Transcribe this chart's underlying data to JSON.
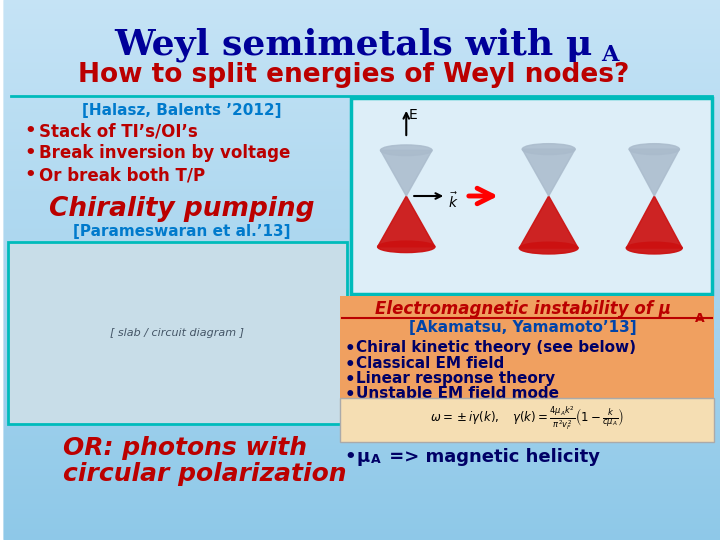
{
  "bg_top": "#c5e3f5",
  "bg_bottom": "#8ec8e8",
  "title_color": "#000099",
  "subtitle": "How to split energies of Weyl nodes?",
  "subtitle_color": "#bb0000",
  "teal_line_color": "#00bbbb",
  "ref1_text": "[Halasz, Balents ’2012]",
  "ref1_color": "#007acc",
  "bullets": [
    "Stack of TI’s/OI’s",
    "Break inversion by voltage",
    "Or break both T/P"
  ],
  "bullets_color": "#bb0000",
  "chirality_text": "Chirality pumping",
  "chirality_color": "#bb0000",
  "ref2_text": "[Parameswaran et al.’13]",
  "ref2_color": "#007acc",
  "cone_box_edge": "#00bbbb",
  "cone_box_fill": "#ddeef8",
  "upper_cone_color": "#aabbcc",
  "lower_cone_color": "#cc1111",
  "em_box_color": "#f0a060",
  "em_title_color": "#bb0000",
  "em_ref_text": "[Akamatsu, Yamamoto’13]",
  "em_ref_color": "#0044aa",
  "em_bullets": [
    "Chiral kinetic theory (see below)",
    "Classical EM field",
    "Linear response theory",
    "Unstable EM field mode"
  ],
  "em_bullets_color": "#000066",
  "formula_box_color": "#f5deb3",
  "final_text": " => magnetic helicity",
  "final_color": "#000066",
  "photon1": "OR: photons with",
  "photon2": "circular polarization",
  "photon_color": "#bb0000",
  "left_img_box_edge": "#00bbbb",
  "left_img_box_fill": "#c8dde8"
}
